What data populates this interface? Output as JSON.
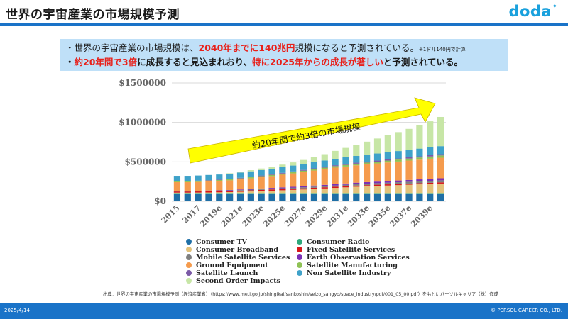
{
  "page": {
    "title": "世界の宇宙産業の市場規模予測",
    "logo": "doda",
    "summary": {
      "line1_a": "・世界の宇宙産業の市場規模は、",
      "line1_hl": "2040年までに140兆円",
      "line1_b": "規模になると予測されている。",
      "line1_note": "※1ドル140円で計算",
      "line2_bullet": "・",
      "line2_hl1": "約20年間で3倍",
      "line2_a": "に成長すると見込まれおり、",
      "line2_hl2": "特に2025年からの成長が著しい",
      "line2_b": "と予測されている。"
    },
    "source": "出典：世界の宇宙産業の市場規模予測（経済産業省）（https://www.meti.go.jp/shingikai/sankoshin/seizo_sangyo/space_industry/pdf/001_05_00.pdf）をもとにパーソルキャリア（株）作成",
    "footer_date": "2025/4/14",
    "footer_copyright": "© PERSOL CAREER CO., LTD."
  },
  "colors": {
    "header_rule": "#1a73c8",
    "summary_bg": "#bfe0f8",
    "highlight": "#e8201a",
    "arrow": "#ffff00"
  },
  "chart_data": {
    "type": "bar",
    "stacked": true,
    "annotation": "約20年間で約3倍の市場規模",
    "x": [
      "2015",
      "2016",
      "2017",
      "2018",
      "2019e",
      "2020e",
      "2021e",
      "2022e",
      "2023e",
      "2024e",
      "2025e",
      "2026e",
      "2027e",
      "2028e",
      "2029e",
      "2030e",
      "2031e",
      "2032e",
      "2033e",
      "2034e",
      "2035e",
      "2036e",
      "2037e",
      "2038e",
      "2039e",
      "2040e"
    ],
    "x_tick_labels": [
      "2015",
      "2017",
      "2019e",
      "2021e",
      "2023e",
      "2025e",
      "2027e",
      "2029e",
      "2031e",
      "2033e",
      "2035e",
      "2037e",
      "2039e"
    ],
    "y_ticks": [
      0,
      500000,
      1000000,
      1500000
    ],
    "y_tick_labels": [
      "$0",
      "$500000",
      "$1000000",
      "$1500000"
    ],
    "ylim": [
      0,
      1500000
    ],
    "grid": true,
    "series": [
      {
        "name": "Consumer TV",
        "color": "#1f6fa6",
        "values": [
          100000,
          100000,
          100000,
          100000,
          100000,
          100000,
          100000,
          100000,
          100000,
          100000,
          100000,
          100000,
          100000,
          100000,
          100000,
          100000,
          100000,
          100000,
          100000,
          100000,
          100000,
          100000,
          100000,
          100000,
          100000,
          100000
        ]
      },
      {
        "name": "Consumer Radio",
        "color": "#2ea87a",
        "values": [
          5000,
          5000,
          5000,
          5000,
          5000,
          5000,
          5000,
          5000,
          5000,
          5000,
          5000,
          5000,
          5000,
          5000,
          5000,
          5000,
          5000,
          5000,
          5000,
          5000,
          5000,
          5000,
          5000,
          5000,
          5000,
          5000
        ]
      },
      {
        "name": "Consumer Broadband",
        "color": "#e3c27a",
        "values": [
          5000,
          5000,
          6000,
          7000,
          9000,
          12000,
          16000,
          20000,
          25000,
          30000,
          35000,
          40000,
          45000,
          52000,
          58000,
          65000,
          72000,
          80000,
          85000,
          90000,
          95000,
          100000,
          105000,
          110000,
          115000,
          120000
        ]
      },
      {
        "name": "Fixed Satellite Services",
        "color": "#d8161a",
        "values": [
          15000,
          15000,
          15000,
          15000,
          15000,
          15000,
          15000,
          15000,
          15000,
          15000,
          15000,
          15000,
          15000,
          15000,
          15000,
          15000,
          15000,
          15000,
          15000,
          15000,
          15000,
          15000,
          15000,
          15000,
          15000,
          15000
        ]
      },
      {
        "name": "Mobile Satellite Services",
        "color": "#7f7f7f",
        "values": [
          4000,
          4000,
          4000,
          5000,
          5000,
          6000,
          7000,
          8000,
          9000,
          10000,
          11000,
          12000,
          13000,
          14000,
          15000,
          16000,
          17000,
          18000,
          19000,
          20000,
          21000,
          22000,
          23000,
          24000,
          25000,
          26000
        ]
      },
      {
        "name": "Earth Observation Services",
        "color": "#7a2fb5",
        "values": [
          4000,
          4000,
          4000,
          5000,
          5000,
          6000,
          7000,
          8000,
          9000,
          10000,
          11000,
          12000,
          13000,
          14000,
          15000,
          16000,
          17000,
          18000,
          19000,
          20000,
          21000,
          22000,
          23000,
          24000,
          25000,
          26000
        ]
      },
      {
        "name": "Ground Equipment",
        "color": "#f59b4d",
        "values": [
          110000,
          110000,
          112000,
          115000,
          118000,
          122000,
          128000,
          135000,
          142000,
          150000,
          160000,
          170000,
          180000,
          190000,
          200000,
          210000,
          215000,
          220000,
          225000,
          230000,
          235000,
          240000,
          245000,
          250000,
          255000,
          260000
        ]
      },
      {
        "name": "Satellite Manufacturing",
        "color": "#8fc255",
        "values": [
          10000,
          10000,
          11000,
          12000,
          12000,
          13000,
          13000,
          14000,
          14000,
          15000,
          15000,
          16000,
          17000,
          18000,
          18000,
          19000,
          20000,
          21000,
          22000,
          23000,
          24000,
          25000,
          26000,
          27000,
          28000,
          29000
        ]
      },
      {
        "name": "Satellite Launch",
        "color": "#7b5aa6",
        "values": [
          5000,
          5000,
          5000,
          5000,
          6000,
          6000,
          7000,
          7000,
          8000,
          8000,
          9000,
          9000,
          10000,
          10000,
          11000,
          11000,
          12000,
          12000,
          13000,
          13000,
          14000,
          14000,
          15000,
          15000,
          16000,
          16000
        ]
      },
      {
        "name": "Non Satellite Industry",
        "color": "#3fa2c9",
        "values": [
          65000,
          65000,
          65000,
          65000,
          65000,
          66000,
          67000,
          68000,
          69000,
          70000,
          72000,
          74000,
          76000,
          78000,
          80000,
          82000,
          84000,
          86000,
          88000,
          90000,
          92000,
          94000,
          96000,
          98000,
          100000,
          102000
        ]
      },
      {
        "name": "Second Order Impacts",
        "color": "#c7e6a6",
        "values": [
          0,
          0,
          0,
          0,
          0,
          5000,
          10000,
          15000,
          20000,
          25000,
          32000,
          40000,
          50000,
          65000,
          80000,
          100000,
          120000,
          140000,
          165000,
          190000,
          215000,
          240000,
          265000,
          300000,
          330000,
          370000
        ]
      }
    ]
  }
}
